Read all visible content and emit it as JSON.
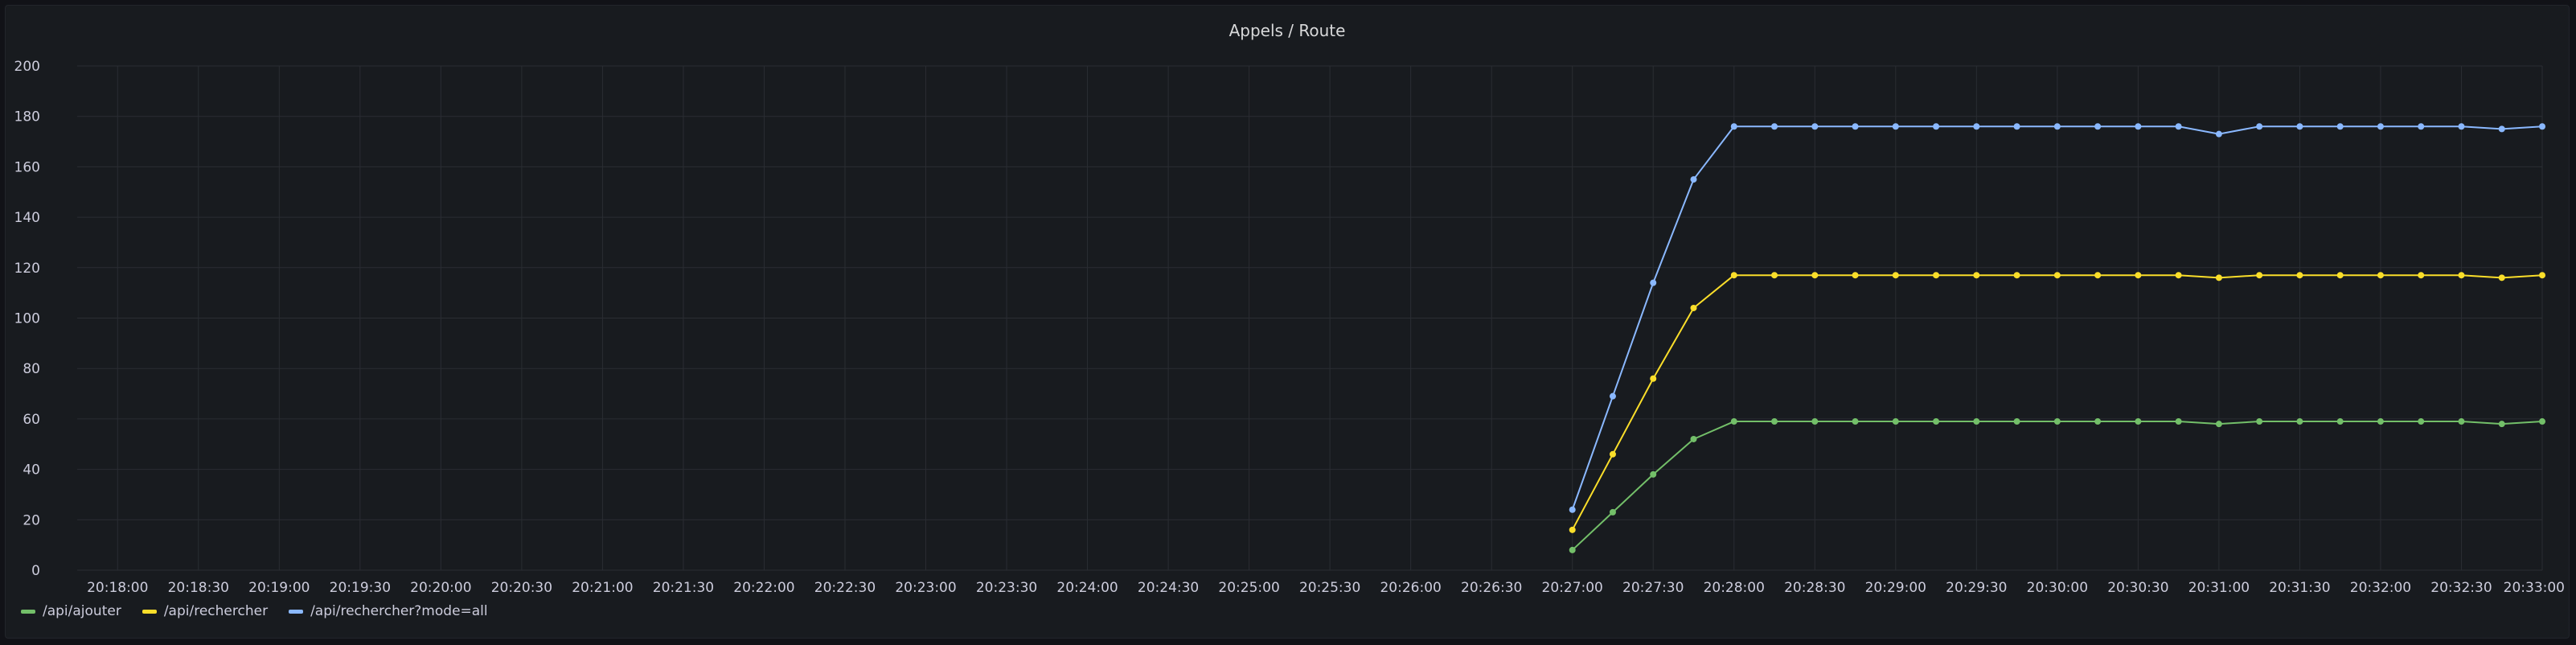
{
  "panel": {
    "title": "Appels / Route"
  },
  "chart_data": {
    "type": "line",
    "title": "Appels / Route",
    "xlabel": "",
    "ylabel": "",
    "ylim": [
      0,
      200
    ],
    "y_ticks": [
      0,
      20,
      40,
      60,
      80,
      100,
      120,
      140,
      160,
      180,
      200
    ],
    "x_range_seconds": [
      1065,
      1980
    ],
    "x_ticks": [
      "20:18:00",
      "20:18:30",
      "20:19:00",
      "20:19:30",
      "20:20:00",
      "20:20:30",
      "20:21:00",
      "20:21:30",
      "20:22:00",
      "20:22:30",
      "20:23:00",
      "20:23:30",
      "20:24:00",
      "20:24:30",
      "20:25:00",
      "20:25:30",
      "20:26:00",
      "20:26:30",
      "20:27:00",
      "20:27:30",
      "20:28:00",
      "20:28:30",
      "20:29:00",
      "20:29:30",
      "20:30:00",
      "20:30:30",
      "20:31:00",
      "20:31:30",
      "20:32:00",
      "20:32:30",
      "20:33:00"
    ],
    "x_tick_seconds": [
      1080,
      1110,
      1140,
      1170,
      1200,
      1230,
      1260,
      1290,
      1320,
      1350,
      1380,
      1410,
      1440,
      1470,
      1500,
      1530,
      1560,
      1590,
      1620,
      1650,
      1680,
      1710,
      1740,
      1770,
      1800,
      1830,
      1860,
      1890,
      1920,
      1950,
      1980
    ],
    "x_points": [
      "20:27:00",
      "20:27:15",
      "20:27:30",
      "20:27:45",
      "20:28:00",
      "20:28:15",
      "20:28:30",
      "20:28:45",
      "20:29:00",
      "20:29:15",
      "20:29:30",
      "20:29:45",
      "20:30:00",
      "20:30:15",
      "20:30:30",
      "20:30:45",
      "20:31:00",
      "20:31:15",
      "20:31:30",
      "20:31:45",
      "20:32:00",
      "20:32:15",
      "20:32:30",
      "20:32:45",
      "20:33:00"
    ],
    "x_point_seconds": [
      1620,
      1635,
      1650,
      1665,
      1680,
      1695,
      1710,
      1725,
      1740,
      1755,
      1770,
      1785,
      1800,
      1815,
      1830,
      1845,
      1860,
      1875,
      1890,
      1905,
      1920,
      1935,
      1950,
      1965,
      1980
    ],
    "series": [
      {
        "name": "/api/ajouter",
        "color": "#73bf69",
        "values": [
          8,
          23,
          38,
          52,
          59,
          59,
          59,
          59,
          59,
          59,
          59,
          59,
          59,
          59,
          59,
          59,
          58,
          59,
          59,
          59,
          59,
          59,
          59,
          58,
          59
        ]
      },
      {
        "name": "/api/rechercher",
        "color": "#fade2a",
        "values": [
          16,
          46,
          76,
          104,
          117,
          117,
          117,
          117,
          117,
          117,
          117,
          117,
          117,
          117,
          117,
          117,
          116,
          117,
          117,
          117,
          117,
          117,
          117,
          116,
          117
        ]
      },
      {
        "name": "/api/rechercher?mode=all",
        "color": "#8ab8ff",
        "values": [
          24,
          69,
          114,
          155,
          176,
          176,
          176,
          176,
          176,
          176,
          176,
          176,
          176,
          176,
          176,
          176,
          173,
          176,
          176,
          176,
          176,
          176,
          176,
          175,
          176
        ]
      }
    ],
    "grid": true,
    "legend": "bottom-left"
  },
  "style": {
    "panel_bg": "#181b1f",
    "grid_color": "#2a2d33",
    "tick_text_color": "#ccccdc"
  }
}
